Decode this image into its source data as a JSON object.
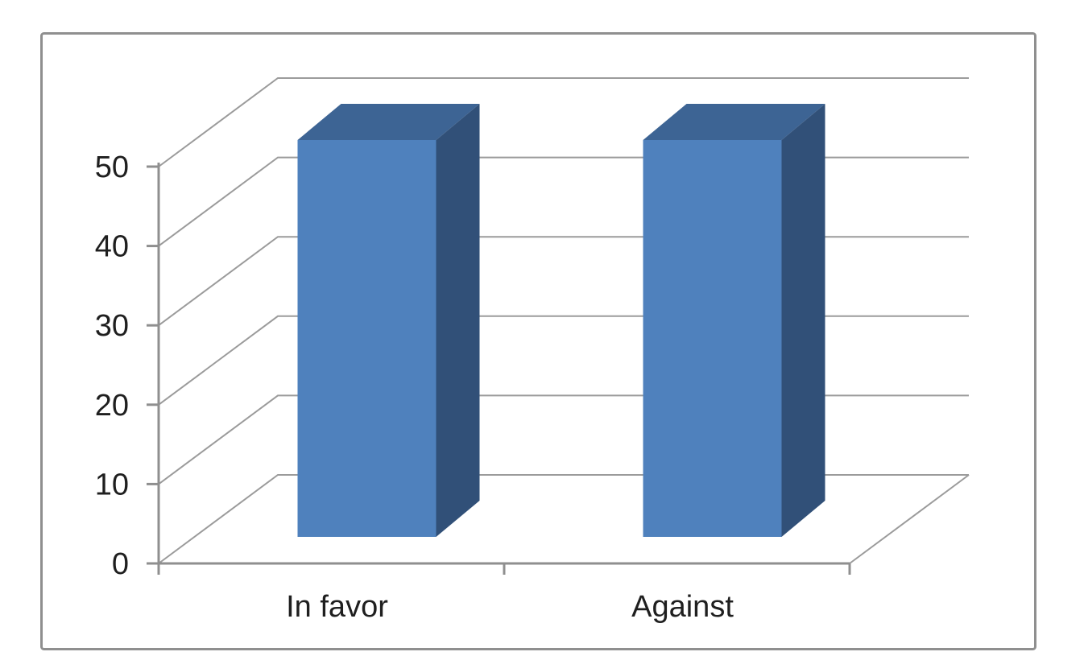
{
  "chart_data": {
    "type": "bar",
    "variant": "3d-column",
    "title": "",
    "xlabel": "",
    "ylabel": "",
    "categories": [
      "In favor",
      "Against"
    ],
    "values": [
      50,
      50
    ],
    "ylim": [
      0,
      50
    ],
    "yticks": [
      0,
      10,
      20,
      30,
      40,
      50
    ],
    "grid": true,
    "legend": false,
    "colors": {
      "background": "#ffffff",
      "plot_background": "#ffffff",
      "bar_front": "#4f81bd",
      "bar_top": "#3d6494",
      "bar_side": "#315078",
      "gridline": "#9b9b9b",
      "axis": "#8f8f8f",
      "tick": "#8f8f8f",
      "border": "#8f8f8f",
      "label": "#1f1f1f"
    }
  }
}
